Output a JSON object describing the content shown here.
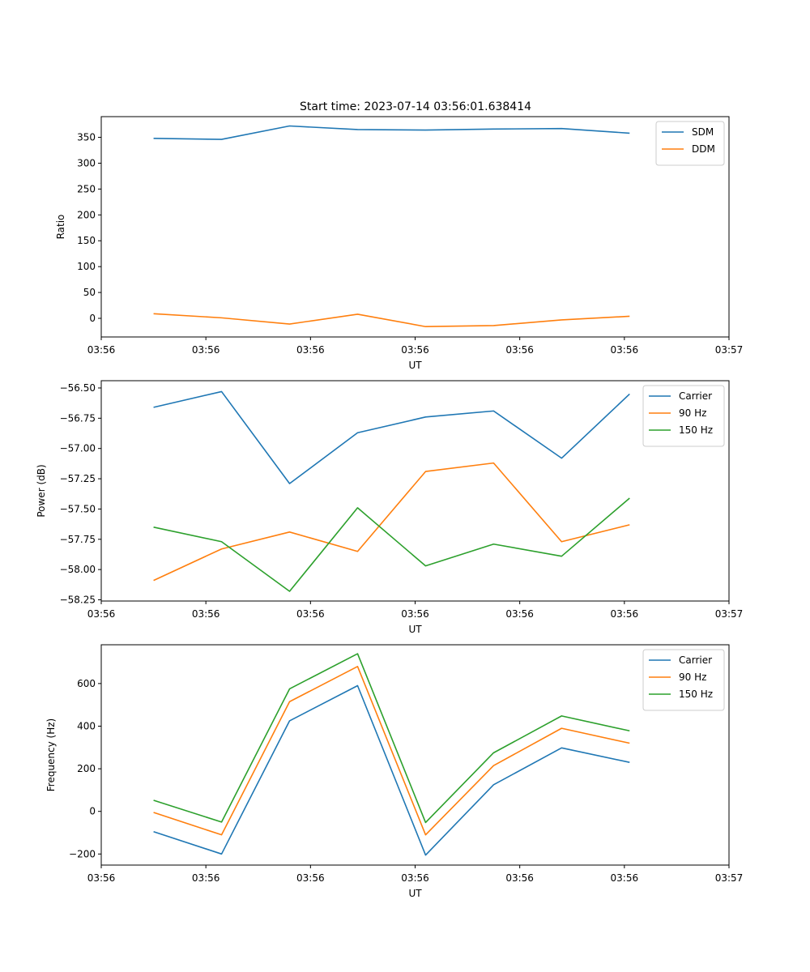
{
  "figure": {
    "title": "Start time: 2023-07-14 03:56:01.638414"
  },
  "colors": {
    "blue": "#1f77b4",
    "orange": "#ff7f0e",
    "green": "#2ca02c"
  },
  "chart_data": [
    {
      "type": "line",
      "title": "Start time: 2023-07-14 03:56:01.638414",
      "xlabel": "UT",
      "ylabel": "Ratio",
      "xlim": [
        0,
        12
      ],
      "ylim": [
        -36,
        390
      ],
      "xticks": [
        0,
        2,
        4,
        6,
        8,
        10,
        12
      ],
      "xtick_labels": [
        "03:56",
        "03:56",
        "03:56",
        "03:56",
        "03:56",
        "03:56",
        "03:57"
      ],
      "yticks": [
        0,
        50,
        100,
        150,
        200,
        250,
        300,
        350
      ],
      "ytick_labels": [
        "0",
        "50",
        "100",
        "150",
        "200",
        "250",
        "300",
        "350"
      ],
      "x": [
        1,
        2.3,
        3.6,
        4.9,
        6.2,
        7.5,
        8.8,
        10.1
      ],
      "legend": "upper right",
      "series": [
        {
          "name": "SDM",
          "color": "#1f77b4",
          "values": [
            348,
            346,
            372,
            365,
            364,
            366,
            367,
            358
          ]
        },
        {
          "name": "DDM",
          "color": "#ff7f0e",
          "values": [
            9,
            1,
            -11,
            8,
            -16,
            -14,
            -3,
            4
          ]
        }
      ]
    },
    {
      "type": "line",
      "title": "",
      "xlabel": "UT",
      "ylabel": "Power (dB)",
      "xlim": [
        0,
        12
      ],
      "ylim": [
        -58.26,
        -56.44
      ],
      "xticks": [
        0,
        2,
        4,
        6,
        8,
        10,
        12
      ],
      "xtick_labels": [
        "03:56",
        "03:56",
        "03:56",
        "03:56",
        "03:56",
        "03:56",
        "03:57"
      ],
      "yticks": [
        -58.25,
        -58.0,
        -57.75,
        -57.5,
        -57.25,
        -57.0,
        -56.75,
        -56.5
      ],
      "ytick_labels": [
        "−58.25",
        "−58.00",
        "−57.75",
        "−57.50",
        "−57.25",
        "−57.00",
        "−56.75",
        "−56.50"
      ],
      "x": [
        1,
        2.3,
        3.6,
        4.9,
        6.2,
        7.5,
        8.8,
        10.1
      ],
      "legend": "upper right",
      "series": [
        {
          "name": "Carrier",
          "color": "#1f77b4",
          "values": [
            -56.66,
            -56.53,
            -57.29,
            -56.87,
            -56.74,
            -56.69,
            -57.08,
            -56.55
          ]
        },
        {
          "name": "90 Hz",
          "color": "#ff7f0e",
          "values": [
            -58.09,
            -57.83,
            -57.69,
            -57.85,
            -57.19,
            -57.12,
            -57.77,
            -57.63
          ]
        },
        {
          "name": "150 Hz",
          "color": "#2ca02c",
          "values": [
            -57.65,
            -57.77,
            -58.18,
            -57.49,
            -57.97,
            -57.79,
            -57.89,
            -57.41
          ]
        }
      ]
    },
    {
      "type": "line",
      "title": "",
      "xlabel": "UT",
      "ylabel": "Frequency (Hz)",
      "xlim": [
        0,
        12
      ],
      "ylim": [
        -252,
        782
      ],
      "xticks": [
        0,
        2,
        4,
        6,
        8,
        10,
        12
      ],
      "xtick_labels": [
        "03:56",
        "03:56",
        "03:56",
        "03:56",
        "03:56",
        "03:56",
        "03:57"
      ],
      "yticks": [
        -200,
        0,
        200,
        400,
        600
      ],
      "ytick_labels": [
        "−200",
        "0",
        "200",
        "400",
        "600"
      ],
      "x": [
        1,
        2.3,
        3.6,
        4.9,
        6.2,
        7.5,
        8.8,
        10.1
      ],
      "legend": "upper right",
      "series": [
        {
          "name": "Carrier",
          "color": "#1f77b4",
          "values": [
            -95,
            -200,
            425,
            590,
            -205,
            125,
            298,
            230
          ]
        },
        {
          "name": "90 Hz",
          "color": "#ff7f0e",
          "values": [
            -5,
            -110,
            515,
            680,
            -110,
            215,
            390,
            320
          ]
        },
        {
          "name": "150 Hz",
          "color": "#2ca02c",
          "values": [
            52,
            -50,
            575,
            740,
            -52,
            275,
            448,
            378
          ]
        }
      ]
    }
  ]
}
